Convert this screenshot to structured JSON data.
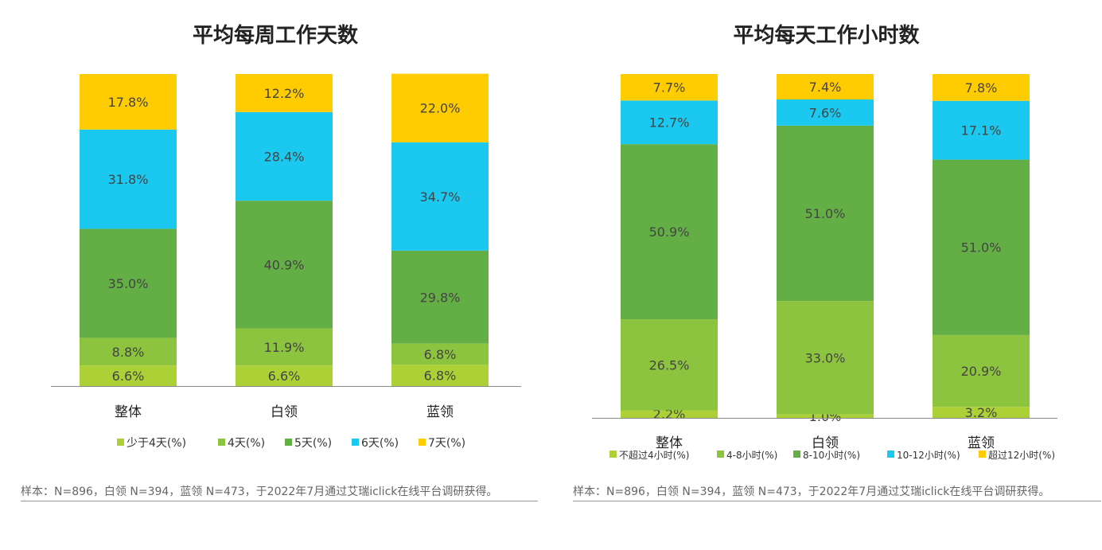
{
  "charts": [
    {
      "title": "平均每周工作天数",
      "footnote": "样本：N=896，白领 N=394，蓝领 N=473，于2022年7月通过艾瑞iclick在线平台调研获得。"
    },
    {
      "title": "平均每天工作小时数",
      "footnote": "样本：N=896，白领 N=394，蓝领 N=473，于2022年7月通过艾瑞iclick在线平台调研获得。"
    }
  ],
  "chart_data": [
    {
      "type": "bar",
      "stacked": true,
      "title": "平均每周工作天数",
      "xlabel": "",
      "ylabel": "",
      "ylim": [
        0,
        100
      ],
      "grid": false,
      "legend_placement": "bottom",
      "categories": [
        "整体",
        "白领",
        "蓝领"
      ],
      "series": [
        {
          "name": "少于4天(%)",
          "color": "#acd137",
          "values": [
            6.6,
            6.6,
            6.8
          ],
          "labels": [
            "6.6%",
            "6.6%",
            "6.8%"
          ]
        },
        {
          "name": "4天(%)",
          "color": "#8dc43f",
          "values": [
            8.8,
            11.9,
            6.8
          ],
          "labels": [
            "8.8%",
            "11.9%",
            "6.8%"
          ]
        },
        {
          "name": "5天(%)",
          "color": "#64af45",
          "values": [
            35.0,
            40.9,
            29.8
          ],
          "labels": [
            "35.0%",
            "40.9%",
            "29.8%"
          ]
        },
        {
          "name": "6天(%)",
          "color": "#1ac8f0",
          "values": [
            31.8,
            28.4,
            34.7
          ],
          "labels": [
            "31.8%",
            "28.4%",
            "34.7%"
          ]
        },
        {
          "name": "7天(%)",
          "color": "#fecc00",
          "values": [
            17.8,
            12.2,
            22.0
          ],
          "labels": [
            "17.8%",
            "12.2%",
            "22.0%"
          ]
        }
      ]
    },
    {
      "type": "bar",
      "stacked": true,
      "title": "平均每天工作小时数",
      "xlabel": "",
      "ylabel": "",
      "ylim": [
        0,
        100
      ],
      "grid": false,
      "legend_placement": "bottom",
      "categories": [
        "整体",
        "白领",
        "蓝领"
      ],
      "series": [
        {
          "name": "不超过4小时(%)",
          "color": "#acd137",
          "values": [
            2.2,
            1.0,
            3.2
          ],
          "labels": [
            "2.2%",
            "1.0%",
            "3.2%"
          ]
        },
        {
          "name": "4-8小时(%)",
          "color": "#8dc43f",
          "values": [
            26.5,
            33.0,
            20.9
          ],
          "labels": [
            "26.5%",
            "33.0%",
            "20.9%"
          ]
        },
        {
          "name": "8-10小时(%)",
          "color": "#64af45",
          "values": [
            50.9,
            51.0,
            51.0
          ],
          "labels": [
            "50.9%",
            "51.0%",
            "51.0%"
          ]
        },
        {
          "name": "10-12小时(%)",
          "color": "#1ac8f0",
          "values": [
            12.7,
            7.6,
            17.1
          ],
          "labels": [
            "12.7%",
            "7.6%",
            "17.1%"
          ]
        },
        {
          "name": "超过12小时(%)",
          "color": "#fecc00",
          "values": [
            7.7,
            7.4,
            7.8
          ],
          "labels": [
            "7.7%",
            "7.4%",
            "7.8%"
          ]
        }
      ]
    }
  ]
}
